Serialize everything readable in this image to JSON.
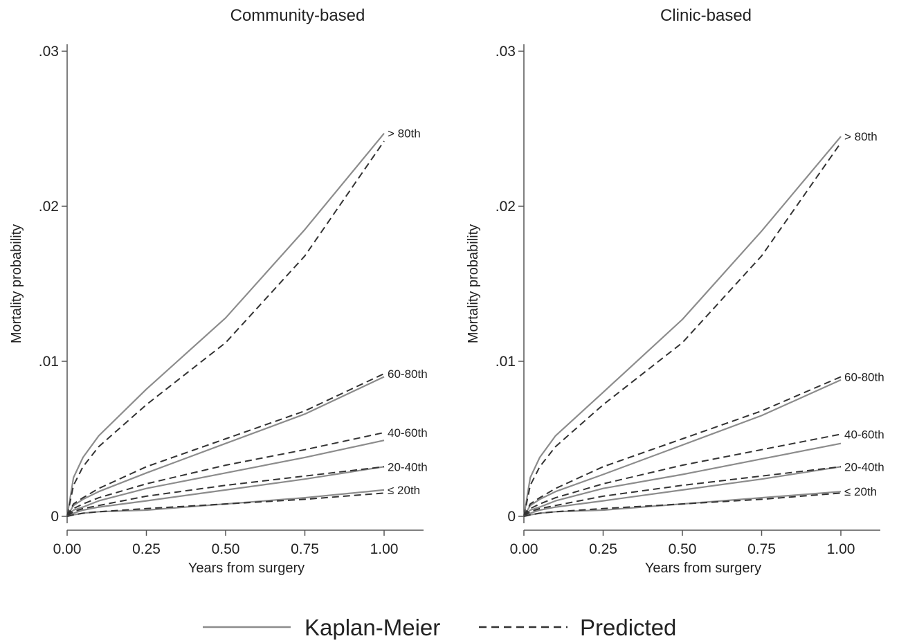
{
  "colors": {
    "kaplan_meier": "#8c8c8c",
    "predicted": "#333333",
    "axis": "#555555"
  },
  "legend": {
    "kaplan_meier_label": "Kaplan-Meier",
    "predicted_label": "Predicted",
    "placement": "bottom"
  },
  "chart_data": [
    {
      "type": "line",
      "title": "Community-based",
      "xlabel": "Years from surgery",
      "ylabel": "Mortality probability",
      "xlim": [
        0,
        1
      ],
      "ylim": [
        0,
        0.03
      ],
      "xticks": [
        0,
        0.25,
        0.5,
        0.75,
        1
      ],
      "xtick_labels": [
        "0.00",
        "0.25",
        "0.50",
        "0.75",
        "1.00"
      ],
      "yticks": [
        0,
        0.01,
        0.02,
        0.03
      ],
      "ytick_labels": [
        "0",
        ".01",
        ".02",
        ".03"
      ],
      "grid": false,
      "x": [
        0,
        0.02,
        0.05,
        0.1,
        0.25,
        0.5,
        0.75,
        1.0
      ],
      "series": [
        {
          "name": "> 80th",
          "kaplan_meier": [
            0,
            0.0025,
            0.0038,
            0.0052,
            0.0082,
            0.0128,
            0.0185,
            0.0247
          ],
          "predicted": [
            0,
            0.002,
            0.0032,
            0.0045,
            0.0072,
            0.0112,
            0.0168,
            0.0242
          ]
        },
        {
          "name": "60-80th",
          "kaplan_meier": [
            0,
            0.0007,
            0.0011,
            0.0016,
            0.0028,
            0.0047,
            0.0066,
            0.009
          ],
          "predicted": [
            0,
            0.0008,
            0.0012,
            0.0018,
            0.0032,
            0.005,
            0.0068,
            0.0092
          ]
        },
        {
          "name": "40-60th",
          "kaplan_meier": [
            0,
            0.0004,
            0.0006,
            0.001,
            0.0018,
            0.0028,
            0.0038,
            0.0049
          ],
          "predicted": [
            0,
            0.0005,
            0.0008,
            0.0012,
            0.0021,
            0.0033,
            0.0043,
            0.0054
          ]
        },
        {
          "name": "20-40th",
          "kaplan_meier": [
            0,
            0.0002,
            0.0004,
            0.0006,
            0.001,
            0.0017,
            0.0024,
            0.0032
          ],
          "predicted": [
            0,
            0.0003,
            0.0005,
            0.0007,
            0.0013,
            0.002,
            0.0026,
            0.0032
          ]
        },
        {
          "name": "≤ 20th",
          "kaplan_meier": [
            0,
            0.0001,
            0.0002,
            0.0003,
            0.0004,
            0.0008,
            0.0012,
            0.0017
          ],
          "predicted": [
            0,
            0.0001,
            0.0002,
            0.0003,
            0.0005,
            0.0008,
            0.0011,
            0.0015
          ]
        }
      ]
    },
    {
      "type": "line",
      "title": "Clinic-based",
      "xlabel": "Years from surgery",
      "ylabel": "Mortality probability",
      "xlim": [
        0,
        1
      ],
      "ylim": [
        0,
        0.03
      ],
      "xticks": [
        0,
        0.25,
        0.5,
        0.75,
        1
      ],
      "xtick_labels": [
        "0.00",
        "0.25",
        "0.50",
        "0.75",
        "1.00"
      ],
      "yticks": [
        0,
        0.01,
        0.02,
        0.03
      ],
      "ytick_labels": [
        "0",
        ".01",
        ".02",
        ".03"
      ],
      "grid": false,
      "x": [
        0,
        0.02,
        0.05,
        0.1,
        0.25,
        0.5,
        0.75,
        1.0
      ],
      "series": [
        {
          "name": "> 80th",
          "kaplan_meier": [
            0,
            0.0025,
            0.0038,
            0.0052,
            0.008,
            0.0127,
            0.0184,
            0.0245
          ],
          "predicted": [
            0,
            0.002,
            0.0032,
            0.0045,
            0.0072,
            0.0112,
            0.0168,
            0.0241
          ]
        },
        {
          "name": "60-80th",
          "kaplan_meier": [
            0,
            0.0007,
            0.0011,
            0.0016,
            0.0027,
            0.0046,
            0.0065,
            0.0088
          ],
          "predicted": [
            0,
            0.0008,
            0.0012,
            0.0018,
            0.0032,
            0.005,
            0.0068,
            0.009
          ]
        },
        {
          "name": "40-60th",
          "kaplan_meier": [
            0,
            0.0004,
            0.0006,
            0.001,
            0.0018,
            0.0027,
            0.0037,
            0.0047
          ],
          "predicted": [
            0,
            0.0005,
            0.0008,
            0.0012,
            0.0021,
            0.0033,
            0.0043,
            0.0053
          ]
        },
        {
          "name": "20-40th",
          "kaplan_meier": [
            0,
            0.0002,
            0.0004,
            0.0006,
            0.001,
            0.0017,
            0.0024,
            0.0032
          ],
          "predicted": [
            0,
            0.0003,
            0.0005,
            0.0007,
            0.0013,
            0.002,
            0.0026,
            0.0032
          ]
        },
        {
          "name": "≤ 20th",
          "kaplan_meier": [
            0,
            0.0001,
            0.0002,
            0.0003,
            0.0004,
            0.0008,
            0.0012,
            0.0016
          ],
          "predicted": [
            0,
            0.0001,
            0.0002,
            0.0003,
            0.0005,
            0.0008,
            0.0011,
            0.0015
          ]
        }
      ]
    }
  ]
}
